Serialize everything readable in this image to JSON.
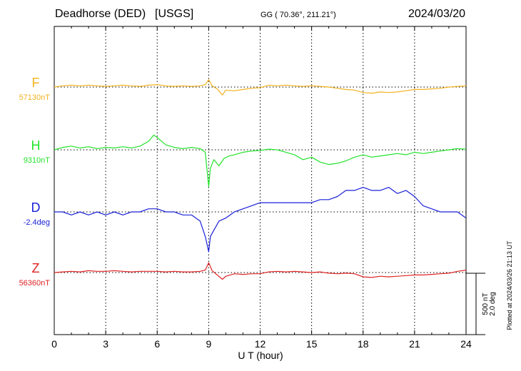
{
  "header": {
    "station": "Deadhorse (DED)",
    "source": "[USGS]",
    "coords": "GG ( 70.36°, 211.21°)",
    "date": "2024/03/20"
  },
  "plotted_note": "Plotted at 2024/03/26 21:13 UT",
  "chart_data": {
    "type": "line",
    "xlabel": "U T (hour)",
    "xlim": [
      0,
      24
    ],
    "xticks": [
      0,
      3,
      6,
      9,
      12,
      15,
      18,
      21,
      24
    ],
    "grid": true,
    "scale_bar": {
      "field": "500 nT",
      "declination": "2.0 deg"
    },
    "series": [
      {
        "name": "F",
        "baseline_label": "57130nT",
        "color": "#f2b21f",
        "x": [
          0,
          0.5,
          1,
          1.5,
          2,
          2.5,
          3,
          3.5,
          4,
          4.5,
          5,
          5.5,
          6,
          6.5,
          7,
          7.5,
          8,
          8.5,
          8.8,
          9.0,
          9.2,
          9.5,
          9.8,
          10.0,
          10.5,
          11,
          11.5,
          12,
          12.5,
          13,
          13.5,
          14,
          14.5,
          15,
          15.5,
          16,
          16.5,
          17,
          17.5,
          18,
          18.5,
          19,
          19.5,
          20,
          20.5,
          21,
          21.5,
          22,
          22.5,
          23,
          23.5,
          24
        ],
        "values": [
          0,
          10,
          15,
          10,
          15,
          10,
          5,
          10,
          15,
          10,
          5,
          15,
          20,
          10,
          5,
          10,
          5,
          10,
          20,
          60,
          10,
          -15,
          -65,
          -25,
          -30,
          -20,
          -10,
          -5,
          15,
          10,
          15,
          10,
          5,
          10,
          5,
          0,
          -10,
          -20,
          -25,
          -45,
          -50,
          -40,
          -45,
          -40,
          -30,
          -20,
          -20,
          -15,
          -10,
          0,
          5,
          10
        ]
      },
      {
        "name": "H",
        "baseline_label": "9310nT",
        "color": "#22e32a",
        "x": [
          0,
          0.5,
          1,
          1.5,
          2,
          2.5,
          3,
          3.5,
          4,
          4.5,
          5,
          5.5,
          5.8,
          6.0,
          6.5,
          7,
          7.5,
          8,
          8.5,
          8.8,
          9.0,
          9.1,
          9.3,
          9.6,
          9.9,
          10.2,
          10.5,
          11,
          11.5,
          12,
          12.5,
          13,
          13.5,
          14,
          14.5,
          15,
          15.5,
          16,
          16.5,
          17,
          17.5,
          18,
          18.5,
          19,
          19.5,
          20,
          20.5,
          21,
          21.5,
          22,
          22.5,
          23,
          23.5,
          24
        ],
        "values": [
          0,
          20,
          30,
          15,
          25,
          10,
          20,
          15,
          25,
          15,
          30,
          70,
          120,
          100,
          40,
          20,
          10,
          20,
          10,
          -20,
          -300,
          -150,
          -80,
          -130,
          -70,
          -50,
          -40,
          -20,
          -10,
          -5,
          5,
          0,
          -20,
          -40,
          -80,
          -60,
          -100,
          -120,
          -110,
          -90,
          -60,
          -40,
          -60,
          -50,
          -40,
          -30,
          -40,
          -20,
          -30,
          -20,
          -10,
          0,
          10,
          5
        ]
      },
      {
        "name": "D",
        "baseline_label": "-2.4deg",
        "color": "#1b22d8",
        "x": [
          0,
          0.5,
          1,
          1.5,
          2,
          2.5,
          3,
          3.5,
          4,
          4.5,
          5,
          5.5,
          6,
          6.5,
          7,
          7.5,
          8,
          8.5,
          8.8,
          9.0,
          9.1,
          9.3,
          9.6,
          10,
          10.5,
          11,
          11.5,
          12,
          12.5,
          13,
          13.5,
          14,
          14.5,
          15,
          15.5,
          16,
          16.5,
          17,
          17.5,
          18,
          18.5,
          19,
          19.5,
          20,
          20.5,
          21,
          21.5,
          22,
          22.5,
          23,
          23.5,
          24
        ],
        "values": [
          0.0,
          0.0,
          -0.1,
          0.0,
          -0.1,
          0.0,
          -0.1,
          0.0,
          -0.1,
          0.0,
          0.0,
          0.1,
          0.1,
          0.0,
          0.0,
          -0.1,
          -0.1,
          -0.3,
          -0.8,
          -1.3,
          -0.8,
          -0.6,
          -0.3,
          -0.2,
          0.0,
          0.1,
          0.2,
          0.3,
          0.3,
          0.3,
          0.3,
          0.3,
          0.3,
          0.3,
          0.4,
          0.4,
          0.5,
          0.7,
          0.7,
          0.8,
          0.7,
          0.7,
          0.8,
          0.6,
          0.7,
          0.5,
          0.2,
          0.1,
          0.0,
          0.0,
          0.0,
          -0.2
        ]
      },
      {
        "name": "Z",
        "baseline_label": "56360nT",
        "color": "#e02323",
        "x": [
          0,
          0.5,
          1,
          1.5,
          2,
          2.5,
          3,
          3.5,
          4,
          4.5,
          5,
          5.5,
          6,
          6.5,
          7,
          7.5,
          8,
          8.5,
          8.8,
          9.0,
          9.2,
          9.5,
          9.8,
          10,
          10.5,
          11,
          11.5,
          12,
          12.5,
          13,
          13.5,
          14,
          14.5,
          15,
          15.5,
          16,
          16.5,
          17,
          17.5,
          18,
          18.5,
          19,
          19.5,
          20,
          20.5,
          21,
          21.5,
          22,
          22.5,
          23,
          23.5,
          24
        ],
        "values": [
          0,
          5,
          10,
          5,
          15,
          10,
          10,
          15,
          10,
          5,
          10,
          10,
          10,
          5,
          10,
          5,
          5,
          10,
          20,
          80,
          15,
          -20,
          -55,
          -30,
          -10,
          -15,
          -10,
          -10,
          5,
          10,
          5,
          10,
          5,
          0,
          5,
          -5,
          -10,
          -5,
          -10,
          -35,
          -40,
          -30,
          -35,
          -30,
          -25,
          -20,
          -20,
          -15,
          -10,
          -5,
          10,
          20
        ]
      }
    ]
  }
}
